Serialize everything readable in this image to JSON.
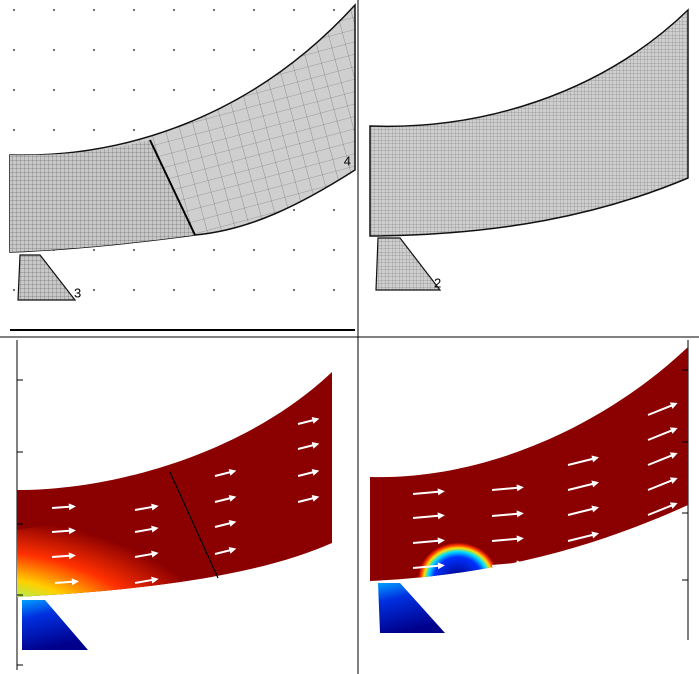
{
  "panels": [
    {
      "labels": [
        "3",
        "4"
      ]
    },
    {
      "labels": [
        "2"
      ]
    }
  ]
}
